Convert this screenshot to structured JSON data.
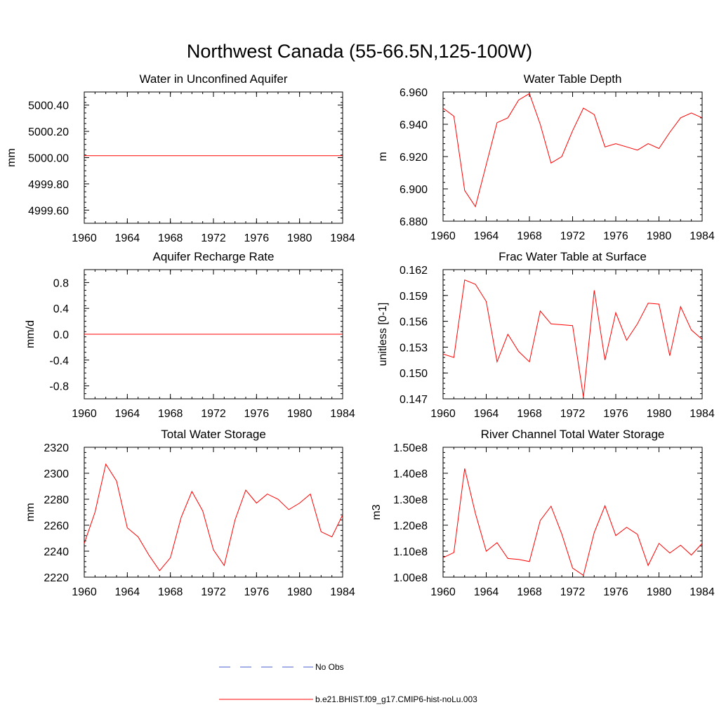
{
  "figure": {
    "title": "Northwest Canada (55-66.5N,125-100W)"
  },
  "legend": {
    "placement": "bottom-center",
    "entries": [
      {
        "label": "No Obs",
        "color": "#4a5fd0",
        "style": "dashed"
      },
      {
        "label": "b.e21.BHIST.f09_g17.CMIP6-hist-noLu.003",
        "color": "#ff0000",
        "style": "solid"
      }
    ]
  },
  "chart_data": [
    {
      "type": "line",
      "title": "Water in Unconfined Aquifer",
      "ylabel": "mm",
      "xlim": [
        1960,
        1984
      ],
      "ylim": [
        4999.5,
        5000.5
      ],
      "xticks": [
        1960,
        1964,
        1968,
        1972,
        1976,
        1980,
        1984
      ],
      "xtick_labels": [
        "1960",
        "1964",
        "1968",
        "1972",
        "1976",
        "1980",
        "1984"
      ],
      "yticks": [
        4999.6,
        4999.8,
        5000.0,
        5000.2,
        5000.4
      ],
      "ytick_labels": [
        "4999.60",
        "4999.80",
        "5000.00",
        "5000.20",
        "5000.40"
      ],
      "x": [
        1960,
        1961,
        1962,
        1963,
        1964,
        1965,
        1966,
        1967,
        1968,
        1969,
        1970,
        1971,
        1972,
        1973,
        1974,
        1975,
        1976,
        1977,
        1978,
        1979,
        1980,
        1981,
        1982,
        1983,
        1984
      ],
      "series": [
        {
          "color": "#ff0000",
          "values": [
            5000.015,
            5000.015,
            5000.015,
            5000.015,
            5000.015,
            5000.015,
            5000.015,
            5000.015,
            5000.015,
            5000.015,
            5000.015,
            5000.015,
            5000.015,
            5000.015,
            5000.015,
            5000.015,
            5000.015,
            5000.015,
            5000.015,
            5000.015,
            5000.015,
            5000.015,
            5000.015,
            5000.015,
            5000.015
          ]
        }
      ]
    },
    {
      "type": "line",
      "title": "Water Table Depth",
      "ylabel": "m",
      "xlim": [
        1960,
        1984
      ],
      "ylim": [
        6.88,
        6.96
      ],
      "xticks": [
        1960,
        1964,
        1968,
        1972,
        1976,
        1980,
        1984
      ],
      "xtick_labels": [
        "1960",
        "1964",
        "1968",
        "1972",
        "1976",
        "1980",
        "1984"
      ],
      "yticks": [
        6.88,
        6.9,
        6.92,
        6.94,
        6.96
      ],
      "ytick_labels": [
        "6.880",
        "6.900",
        "6.920",
        "6.940",
        "6.960"
      ],
      "x": [
        1960,
        1961,
        1962,
        1963,
        1964,
        1965,
        1966,
        1967,
        1968,
        1969,
        1970,
        1971,
        1972,
        1973,
        1974,
        1975,
        1976,
        1977,
        1978,
        1979,
        1980,
        1981,
        1982,
        1983,
        1984
      ],
      "series": [
        {
          "color": "#ff0000",
          "values": [
            6.95,
            6.945,
            6.899,
            6.889,
            6.915,
            6.941,
            6.944,
            6.955,
            6.959,
            6.94,
            6.916,
            6.92,
            6.936,
            6.95,
            6.946,
            6.926,
            6.928,
            6.926,
            6.924,
            6.928,
            6.925,
            6.935,
            6.944,
            6.947,
            6.944
          ]
        }
      ]
    },
    {
      "type": "line",
      "title": "Aquifer Recharge Rate",
      "ylabel": "mm/d",
      "xlim": [
        1960,
        1984
      ],
      "ylim": [
        -1.0,
        1.0
      ],
      "xticks": [
        1960,
        1964,
        1968,
        1972,
        1976,
        1980,
        1984
      ],
      "xtick_labels": [
        "1960",
        "1964",
        "1968",
        "1972",
        "1976",
        "1980",
        "1984"
      ],
      "yticks": [
        -0.8,
        -0.4,
        0.0,
        0.4,
        0.8
      ],
      "ytick_labels": [
        "-0.8",
        "-0.4",
        "0.0",
        "0.4",
        "0.8"
      ],
      "x": [
        1960,
        1961,
        1962,
        1963,
        1964,
        1965,
        1966,
        1967,
        1968,
        1969,
        1970,
        1971,
        1972,
        1973,
        1974,
        1975,
        1976,
        1977,
        1978,
        1979,
        1980,
        1981,
        1982,
        1983,
        1984
      ],
      "series": [
        {
          "color": "#ff0000",
          "values": [
            0,
            0,
            0,
            0,
            0,
            0,
            0,
            0,
            0,
            0,
            0,
            0,
            0,
            0,
            0,
            0,
            0,
            0,
            0,
            0,
            0,
            0,
            0,
            0,
            0
          ]
        }
      ]
    },
    {
      "type": "line",
      "title": "Frac Water Table at Surface",
      "ylabel": "unitless [0-1]",
      "xlim": [
        1960,
        1984
      ],
      "ylim": [
        0.147,
        0.162
      ],
      "xticks": [
        1960,
        1964,
        1968,
        1972,
        1976,
        1980,
        1984
      ],
      "xtick_labels": [
        "1960",
        "1964",
        "1968",
        "1972",
        "1976",
        "1980",
        "1984"
      ],
      "yticks": [
        0.147,
        0.15,
        0.153,
        0.156,
        0.159,
        0.162
      ],
      "ytick_labels": [
        "0.147",
        "0.150",
        "0.153",
        "0.156",
        "0.159",
        "0.162"
      ],
      "x": [
        1960,
        1961,
        1962,
        1963,
        1964,
        1965,
        1966,
        1967,
        1968,
        1969,
        1970,
        1971,
        1972,
        1973,
        1974,
        1975,
        1976,
        1977,
        1978,
        1979,
        1980,
        1981,
        1982,
        1983,
        1984
      ],
      "series": [
        {
          "color": "#ff0000",
          "values": [
            0.1522,
            0.1518,
            0.1608,
            0.1603,
            0.1583,
            0.1513,
            0.1545,
            0.1525,
            0.1513,
            0.1572,
            0.1557,
            0.1556,
            0.1555,
            0.1472,
            0.1596,
            0.1515,
            0.157,
            0.1538,
            0.1557,
            0.1581,
            0.158,
            0.152,
            0.1577,
            0.155,
            0.1539
          ]
        }
      ]
    },
    {
      "type": "line",
      "title": "Total Water Storage",
      "ylabel": "mm",
      "xlim": [
        1960,
        1984
      ],
      "ylim": [
        2220,
        2320
      ],
      "xticks": [
        1960,
        1964,
        1968,
        1972,
        1976,
        1980,
        1984
      ],
      "xtick_labels": [
        "1960",
        "1964",
        "1968",
        "1972",
        "1976",
        "1980",
        "1984"
      ],
      "yticks": [
        2220,
        2240,
        2260,
        2280,
        2300,
        2320
      ],
      "ytick_labels": [
        "2220",
        "2240",
        "2260",
        "2280",
        "2300",
        "2320"
      ],
      "x": [
        1960,
        1961,
        1962,
        1963,
        1964,
        1965,
        1966,
        1967,
        1968,
        1969,
        1970,
        1971,
        1972,
        1973,
        1974,
        1975,
        1976,
        1977,
        1978,
        1979,
        1980,
        1981,
        1982,
        1983,
        1984
      ],
      "series": [
        {
          "color": "#ff0000",
          "values": [
            2246,
            2270,
            2307,
            2294,
            2258,
            2251,
            2237,
            2225,
            2235,
            2266,
            2286,
            2271,
            2241,
            2229,
            2264,
            2287,
            2277,
            2284,
            2280,
            2272,
            2277,
            2284,
            2255,
            2251,
            2268
          ]
        }
      ]
    },
    {
      "type": "line",
      "title": "River Channel Total Water Storage",
      "ylabel": "m3",
      "xlim": [
        1960,
        1984
      ],
      "ylim": [
        100000000,
        150000000
      ],
      "xticks": [
        1960,
        1964,
        1968,
        1972,
        1976,
        1980,
        1984
      ],
      "xtick_labels": [
        "1960",
        "1964",
        "1968",
        "1972",
        "1976",
        "1980",
        "1984"
      ],
      "yticks": [
        100000000,
        110000000,
        120000000,
        130000000,
        140000000,
        150000000
      ],
      "ytick_labels": [
        "1.00e8",
        "1.10e8",
        "1.20e8",
        "1.30e8",
        "1.40e8",
        "1.50e8"
      ],
      "x": [
        1960,
        1961,
        1962,
        1963,
        1964,
        1965,
        1966,
        1967,
        1968,
        1969,
        1970,
        1971,
        1972,
        1973,
        1974,
        1975,
        1976,
        1977,
        1978,
        1979,
        1980,
        1981,
        1982,
        1983,
        1984
      ],
      "series": [
        {
          "color": "#ff0000",
          "values": [
            107500000,
            109500000,
            141800000,
            124500000,
            110000000,
            113300000,
            107200000,
            106800000,
            106000000,
            121800000,
            127300000,
            116600000,
            103500000,
            100700000,
            117200000,
            127500000,
            116000000,
            119200000,
            116500000,
            104500000,
            113000000,
            109300000,
            112300000,
            108500000,
            113000000
          ]
        }
      ]
    }
  ]
}
